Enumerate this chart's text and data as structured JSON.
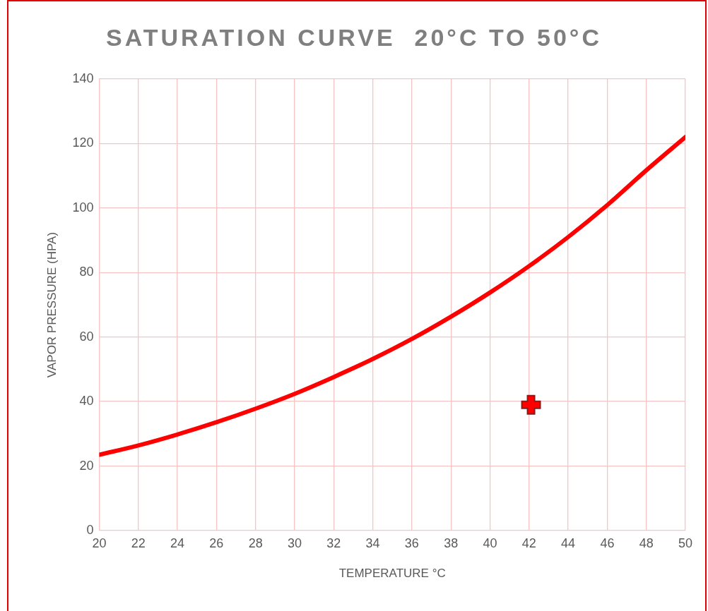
{
  "chart_data": {
    "type": "line",
    "title": "SATURATION CURVE  20°C TO 50°C",
    "xlabel": "TEMPERATURE °C",
    "ylabel": "VAPOR PRESSURE (HPA)",
    "xlim": [
      20,
      50
    ],
    "xticks": [
      20,
      22,
      24,
      26,
      28,
      30,
      32,
      34,
      36,
      38,
      40,
      42,
      44,
      46,
      48,
      50
    ],
    "ylim": [
      0,
      140
    ],
    "yticks": [
      0,
      20,
      40,
      60,
      80,
      100,
      120,
      140
    ],
    "grid": true,
    "legend": false,
    "series": [
      {
        "type": "line",
        "color": "#ff0000",
        "line_style": "solid",
        "marker": "none",
        "x": [
          20,
          22,
          24,
          26,
          28,
          30,
          32,
          34,
          36,
          38,
          40,
          42,
          44,
          46,
          48,
          50
        ],
        "values": [
          23.5,
          26.4,
          29.8,
          33.6,
          37.8,
          42.4,
          47.6,
          53.2,
          59.4,
          66.3,
          73.8,
          82,
          91,
          100.9,
          111.7,
          122
        ]
      },
      {
        "type": "scatter",
        "color": "#ff0000",
        "marker": "cross",
        "x": [
          42.1
        ],
        "values": [
          39
        ]
      }
    ]
  }
}
